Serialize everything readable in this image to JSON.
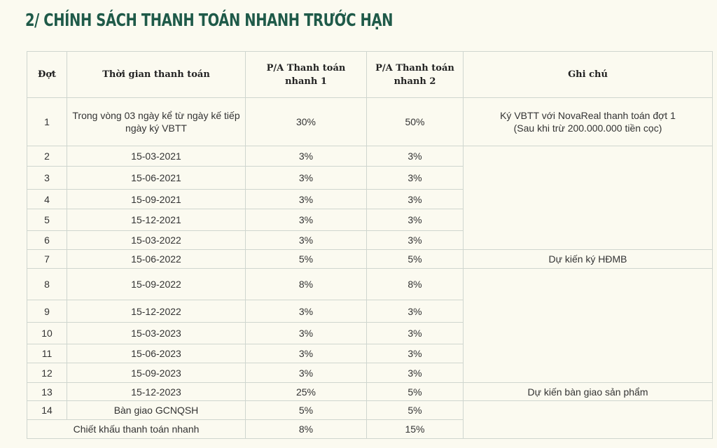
{
  "title": "2/ CHÍNH SÁCH THANH TOÁN NHANH TRƯỚC HẠN",
  "headers": {
    "phase": "Đợt",
    "time": "Thời gian thanh toán",
    "plan1": "P/A Thanh toán nhanh 1",
    "plan2": "P/A Thanh toán nhanh 2",
    "note": "Ghi chú"
  },
  "rows": [
    {
      "phase": "1",
      "time": "Trong vòng 03 ngày kể từ ngày kế tiếp ngày ký VBTT",
      "plan1": "30%",
      "plan2": "50%"
    },
    {
      "phase": "2",
      "time": "15-03-2021",
      "plan1": "3%",
      "plan2": "3%"
    },
    {
      "phase": "3",
      "time": "15-06-2021",
      "plan1": "3%",
      "plan2": "3%"
    },
    {
      "phase": "4",
      "time": "15-09-2021",
      "plan1": "3%",
      "plan2": "3%"
    },
    {
      "phase": "5",
      "time": "15-12-2021",
      "plan1": "3%",
      "plan2": "3%"
    },
    {
      "phase": "6",
      "time": "15-03-2022",
      "plan1": "3%",
      "plan2": "3%"
    },
    {
      "phase": "7",
      "time": "15-06-2022",
      "plan1": "5%",
      "plan2": "5%"
    },
    {
      "phase": "8",
      "time": "15-09-2022",
      "plan1": "8%",
      "plan2": "8%"
    },
    {
      "phase": "9",
      "time": "15-12-2022",
      "plan1": "3%",
      "plan2": "3%"
    },
    {
      "phase": "10",
      "time": "15-03-2023",
      "plan1": "3%",
      "plan2": "3%"
    },
    {
      "phase": "11",
      "time": "15-06-2023",
      "plan1": "3%",
      "plan2": "3%"
    },
    {
      "phase": "12",
      "time": "15-09-2023",
      "plan1": "3%",
      "plan2": "3%"
    },
    {
      "phase": "13",
      "time": "15-12-2023",
      "plan1": "25%",
      "plan2": "5%"
    },
    {
      "phase": "14",
      "time": "Bàn giao GCNQSH",
      "plan1": "5%",
      "plan2": "5%"
    }
  ],
  "discount": {
    "label": "Chiết khấu thanh toán nhanh",
    "plan1": "8%",
    "plan2": "15%"
  },
  "notes": {
    "row1_line1": "Ký VBTT với NovaReal thanh toán đợt 1",
    "row1_line2": "(Sau khi trừ 200.000.000 tiền cọc)",
    "row7": "Dự kiến ký HĐMB",
    "row13": "Dự kiến bàn giao sản phẩm"
  }
}
